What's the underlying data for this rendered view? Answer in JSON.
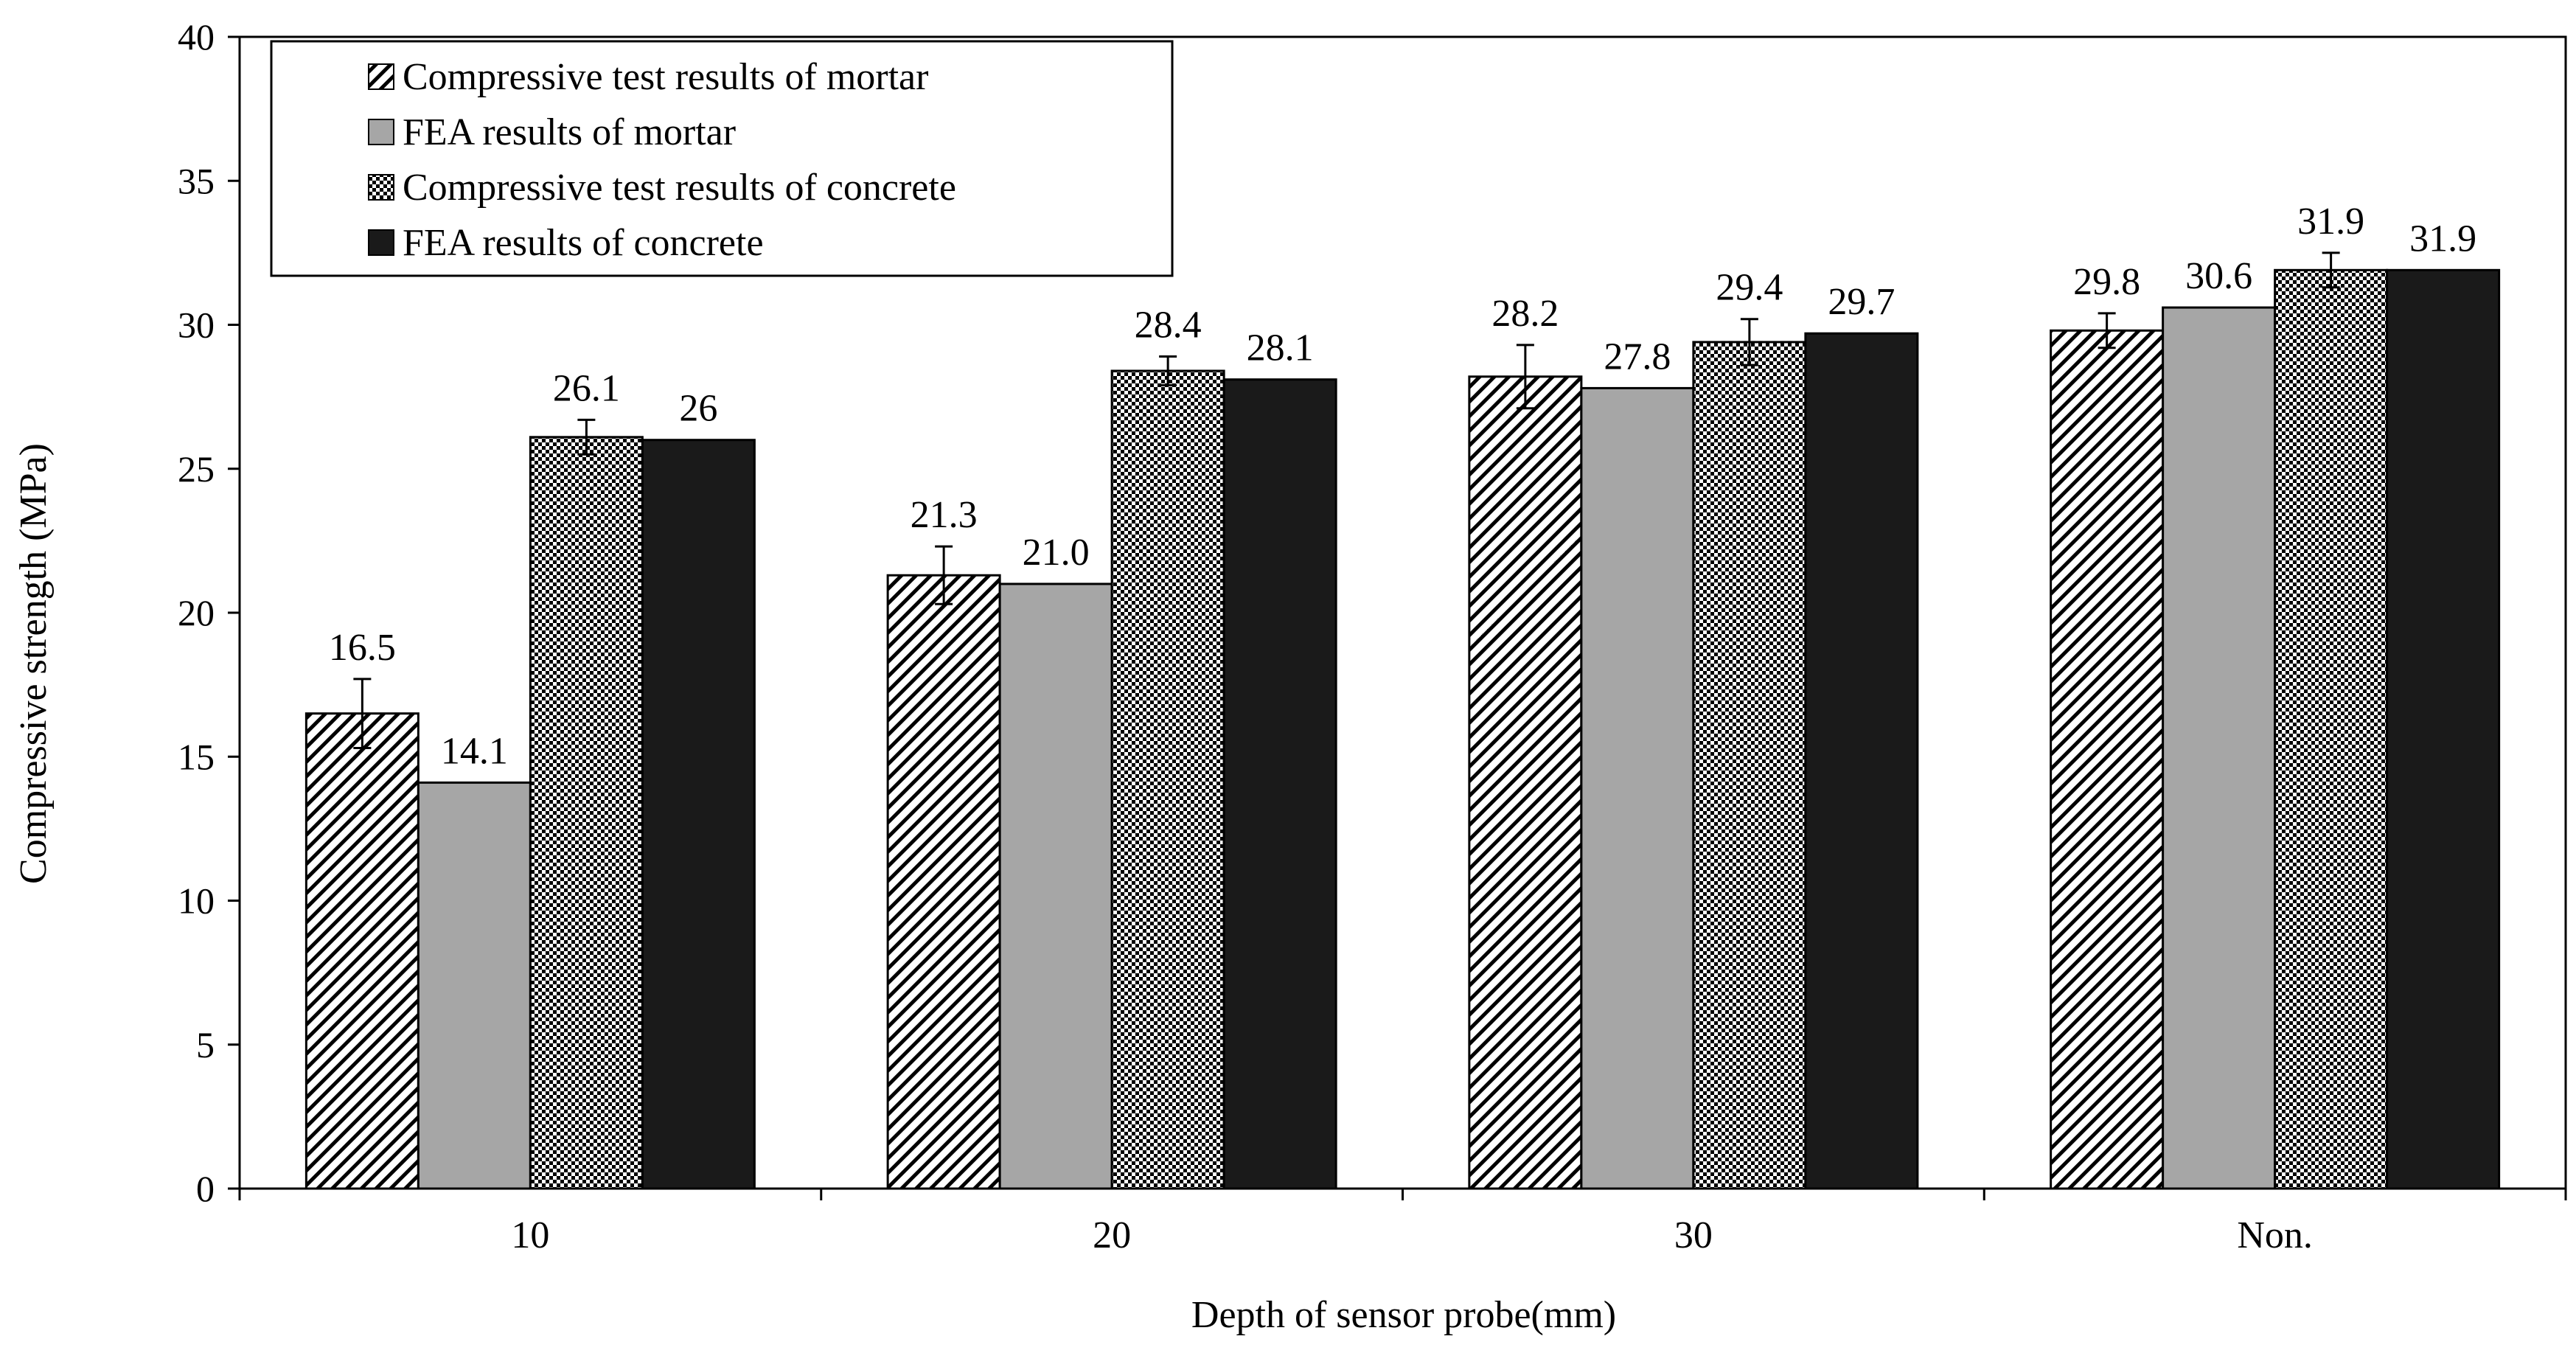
{
  "chart_data": {
    "type": "bar",
    "title": "",
    "xlabel": "Depth of sensor probe(mm)",
    "ylabel": "Compressive strength (MPa)",
    "ylim": [
      0,
      40
    ],
    "yticks": [
      0,
      5,
      10,
      15,
      20,
      25,
      30,
      35,
      40
    ],
    "grid": false,
    "legend_position": "top-left",
    "categories": [
      "10",
      "20",
      "30",
      "Non."
    ],
    "series": [
      {
        "name": "Compressive test results of mortar",
        "pattern": "diagonal-hatch",
        "values": [
          16.5,
          21.3,
          28.2,
          29.8
        ],
        "labels": [
          "16.5",
          "21.3",
          "28.2",
          "29.8"
        ],
        "errors": [
          1.2,
          1.0,
          1.1,
          0.6
        ]
      },
      {
        "name": "FEA results of mortar",
        "pattern": "solid-gray",
        "values": [
          14.1,
          21.0,
          27.8,
          30.6
        ],
        "labels": [
          "14.1",
          "21.0",
          "27.8",
          "30.6"
        ],
        "errors": null
      },
      {
        "name": "Compressive test results of concrete",
        "pattern": "checker",
        "values": [
          26.1,
          28.4,
          29.4,
          31.9
        ],
        "labels": [
          "26.1",
          "28.4",
          "29.4",
          "31.9"
        ],
        "errors": [
          0.6,
          0.5,
          0.8,
          0.6
        ]
      },
      {
        "name": "FEA results of concrete",
        "pattern": "solid-black",
        "values": [
          26.0,
          28.1,
          29.7,
          31.9
        ],
        "labels": [
          "26",
          "28.1",
          "29.7",
          "31.9"
        ],
        "errors": null
      }
    ]
  },
  "colors": {
    "gray_fill": "#a6a6a6",
    "black_fill": "#1a1a1a",
    "axis": "#000000",
    "background": "#ffffff"
  }
}
